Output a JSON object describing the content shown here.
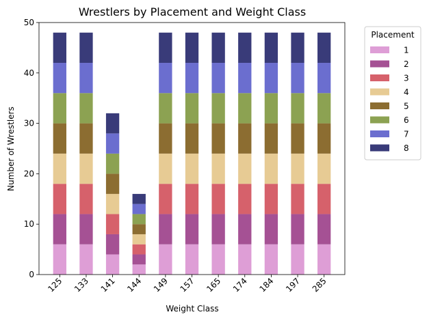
{
  "chart_data": {
    "type": "bar",
    "stacked": true,
    "title": "Wrestlers by Placement and Weight Class",
    "xlabel": "Weight Class",
    "ylabel": "Number of Wrestlers",
    "ylim": [
      0,
      50
    ],
    "yticks": [
      0,
      10,
      20,
      30,
      40,
      50
    ],
    "grid": false,
    "categories": [
      "125",
      "133",
      "141",
      "144",
      "149",
      "157",
      "165",
      "174",
      "184",
      "197",
      "285"
    ],
    "legend": {
      "title": "Placement",
      "placement": "outside-right"
    },
    "series": [
      {
        "name": "1",
        "color": "#de9ed6",
        "values": [
          6,
          6,
          4,
          2,
          6,
          6,
          6,
          6,
          6,
          6,
          6
        ]
      },
      {
        "name": "2",
        "color": "#a55194",
        "values": [
          6,
          6,
          4,
          2,
          6,
          6,
          6,
          6,
          6,
          6,
          6
        ]
      },
      {
        "name": "3",
        "color": "#d6616b",
        "values": [
          6,
          6,
          4,
          2,
          6,
          6,
          6,
          6,
          6,
          6,
          6
        ]
      },
      {
        "name": "4",
        "color": "#e7cb94",
        "values": [
          6,
          6,
          4,
          2,
          6,
          6,
          6,
          6,
          6,
          6,
          6
        ]
      },
      {
        "name": "5",
        "color": "#8c6d31",
        "values": [
          6,
          6,
          4,
          2,
          6,
          6,
          6,
          6,
          6,
          6,
          6
        ]
      },
      {
        "name": "6",
        "color": "#8ca252",
        "values": [
          6,
          6,
          4,
          2,
          6,
          6,
          6,
          6,
          6,
          6,
          6
        ]
      },
      {
        "name": "7",
        "color": "#6b6ecf",
        "values": [
          6,
          6,
          4,
          2,
          6,
          6,
          6,
          6,
          6,
          6,
          6
        ]
      },
      {
        "name": "8",
        "color": "#393b79",
        "values": [
          6,
          6,
          4,
          2,
          6,
          6,
          6,
          6,
          6,
          6,
          6
        ]
      }
    ]
  }
}
